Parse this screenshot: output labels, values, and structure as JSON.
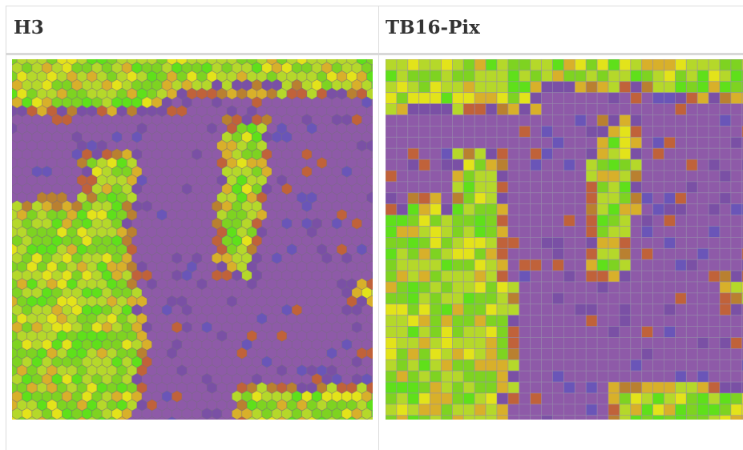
{
  "columns": [
    {
      "id": "h3",
      "title": "H3"
    },
    {
      "id": "tb16",
      "title": "TB16-Pix"
    }
  ],
  "palette": {
    "purple": "#8e5aa8",
    "purple_dark": "#7a50a5",
    "purple_blue": "#6a55b8",
    "green": "#7ed321",
    "green_bright": "#5fe01a",
    "yellow_green": "#b5d82a",
    "yellow": "#e3e31a",
    "gold": "#d8b02a",
    "brown": "#b98030",
    "rust": "#c0623a"
  }
}
